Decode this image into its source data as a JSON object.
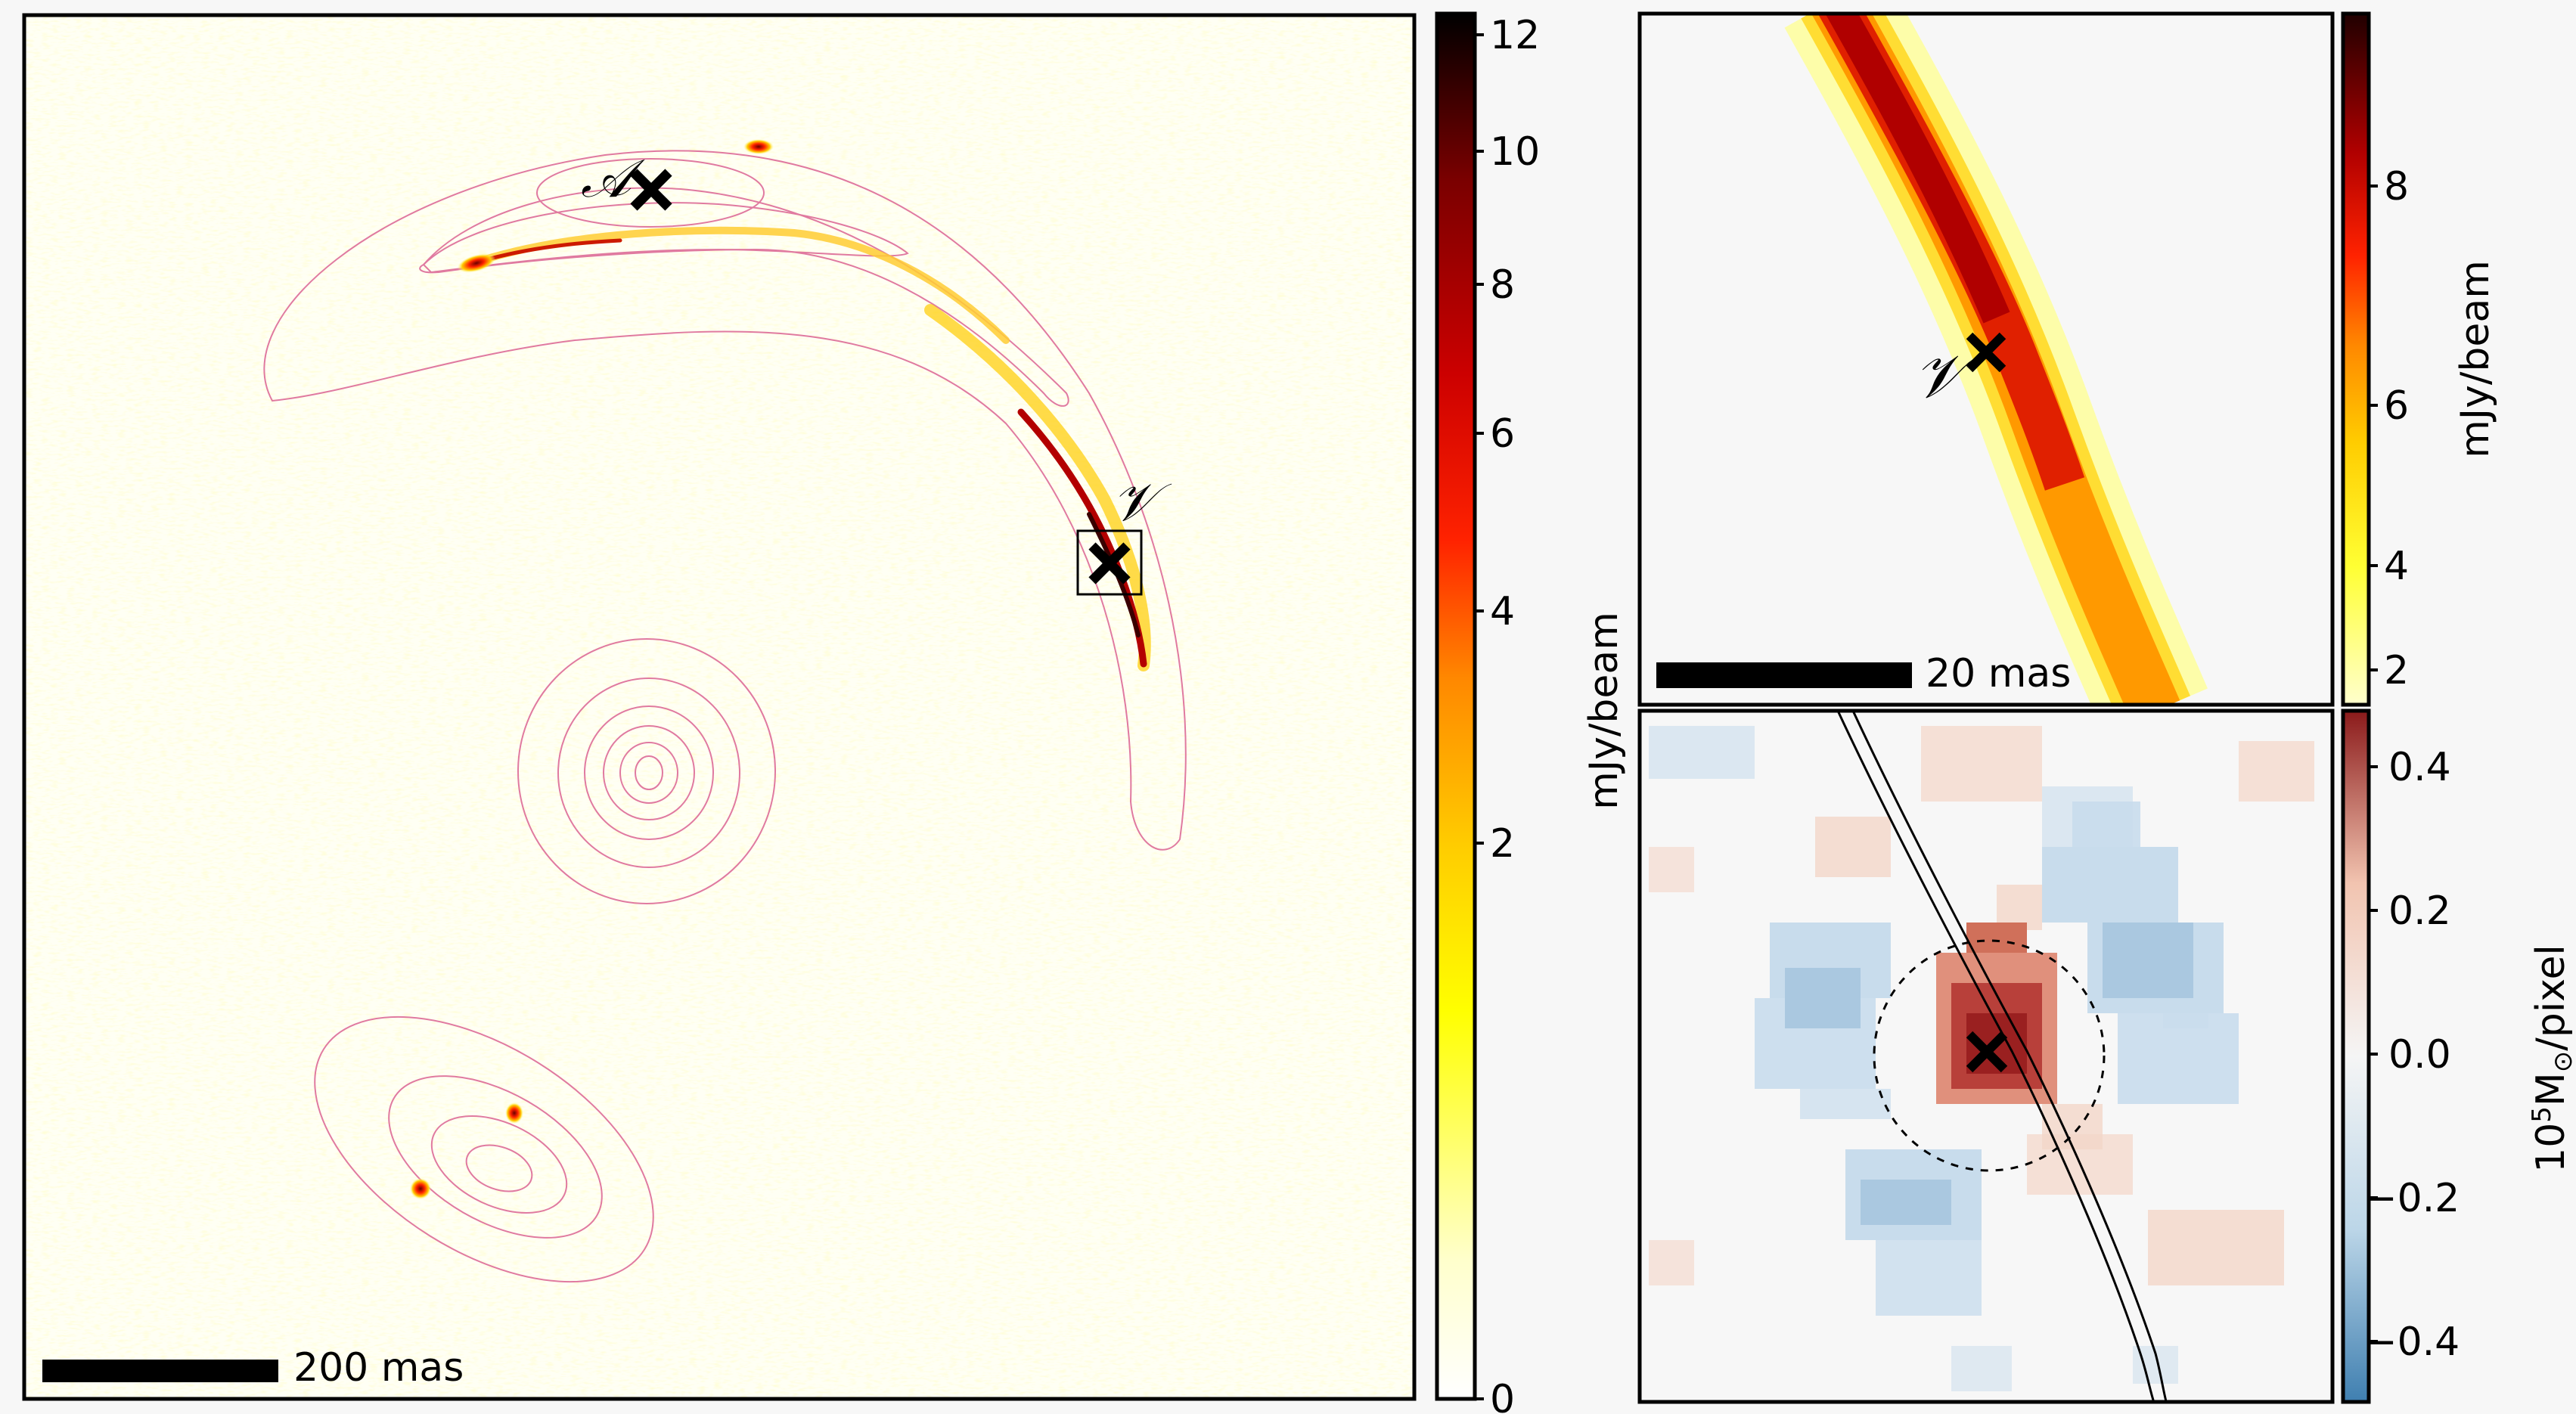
{
  "figure": {
    "background": "#f7f7f7"
  },
  "colors": {
    "contour": "#e07aa0",
    "frame": "#000000",
    "marker": "#000000",
    "hot_stops": [
      "#ffffff",
      "#ffffcc",
      "#ffff00",
      "#ffcc00",
      "#ff8800",
      "#ff2200",
      "#cc0000",
      "#7a0000",
      "#000000"
    ],
    "diverging_stops": [
      "#3f7fb0",
      "#bcd6e8",
      "#f5f5f5",
      "#f2c4b0",
      "#8b1a1a"
    ]
  },
  "chart_data": [
    {
      "type": "heatmap",
      "panel": "main",
      "colormap": "hot_r",
      "colorbar": {
        "label": "mJy/beam",
        "ticks": [
          "0",
          "2",
          "4",
          "6",
          "8",
          "10",
          "12"
        ],
        "scale": "nonlinear"
      },
      "scalebar": {
        "label": "200 mas"
      },
      "markers": [
        {
          "name": "A",
          "label": "𝒜"
        },
        {
          "name": "V",
          "label": "𝒱"
        }
      ],
      "inset_box": {
        "around_marker": "V"
      },
      "contours": {
        "color": "pink",
        "description": "lens light contours"
      }
    },
    {
      "type": "heatmap",
      "panel": "zoom",
      "colormap": "hot_r",
      "colorbar": {
        "label": "mJy/beam",
        "ticks": [
          "2",
          "4",
          "6",
          "8"
        ]
      },
      "scalebar": {
        "label": "20 mas"
      },
      "markers": [
        {
          "name": "V",
          "label": "𝒱"
        }
      ]
    },
    {
      "type": "heatmap",
      "panel": "residual",
      "colormap": "RdBu_r",
      "colorbar": {
        "label": "10⁵M☉/pixel",
        "label_parts": {
          "base": "10",
          "exp": "5",
          "unit": "M",
          "sub": "⊙",
          "rest": "/pixel"
        },
        "ticks": [
          "−0.4",
          "−0.2",
          "0.0",
          "0.2",
          "0.4"
        ],
        "range": [
          -0.48,
          0.48
        ]
      },
      "markers": [
        {
          "name": "V"
        }
      ],
      "circle": {
        "style": "dashed"
      }
    }
  ]
}
